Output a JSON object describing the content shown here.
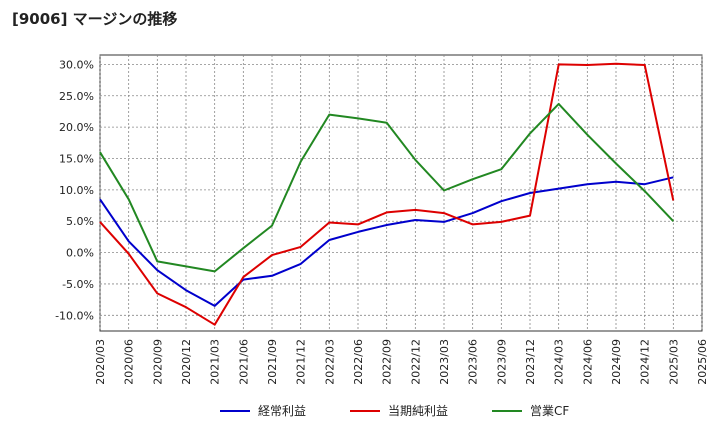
{
  "title": "[9006]  マージンの推移",
  "chart_data": {
    "type": "line",
    "title": "[9006]  マージンの推移",
    "xlabel": "",
    "ylabel": "",
    "categories": [
      "2020/03",
      "2020/06",
      "2020/09",
      "2020/12",
      "2021/03",
      "2021/06",
      "2021/09",
      "2021/12",
      "2022/03",
      "2022/06",
      "2022/09",
      "2022/12",
      "2023/03",
      "2023/06",
      "2023/09",
      "2023/12",
      "2024/03",
      "2024/06",
      "2024/09",
      "2024/12",
      "2025/03",
      "2025/06"
    ],
    "ylim": [
      -12.5,
      31.5
    ],
    "yticks": [
      -10,
      -5,
      0,
      5,
      10,
      15,
      20,
      25,
      30
    ],
    "ytick_labels": [
      "-10.0%",
      "-5.0%",
      "0.0%",
      "5.0%",
      "10.0%",
      "15.0%",
      "20.0%",
      "25.0%",
      "30.0%"
    ],
    "grid": true,
    "legend_position": "bottom",
    "series": [
      {
        "name": "経常利益",
        "color": "#0000cc",
        "values": [
          8.5,
          1.8,
          -2.8,
          -6.0,
          -8.5,
          -4.3,
          -3.7,
          -1.8,
          2.0,
          3.3,
          4.4,
          5.2,
          4.9,
          6.3,
          8.2,
          9.5,
          10.2,
          10.9,
          11.3,
          10.9,
          12.0,
          null
        ]
      },
      {
        "name": "当期純利益",
        "color": "#dd0000",
        "values": [
          4.9,
          -0.2,
          -6.5,
          -8.7,
          -11.5,
          -3.9,
          -0.4,
          0.9,
          4.8,
          4.5,
          6.4,
          6.8,
          6.3,
          4.5,
          4.9,
          5.9,
          30.0,
          29.9,
          30.1,
          29.9,
          8.3,
          null
        ]
      },
      {
        "name": "営業CF",
        "color": "#228822",
        "values": [
          16.0,
          8.5,
          -1.4,
          -2.2,
          -3.0,
          0.7,
          4.3,
          14.5,
          22.0,
          21.4,
          20.7,
          14.8,
          9.9,
          11.7,
          13.3,
          19.0,
          23.7,
          18.8,
          14.2,
          9.8,
          5.0,
          null
        ]
      }
    ]
  }
}
